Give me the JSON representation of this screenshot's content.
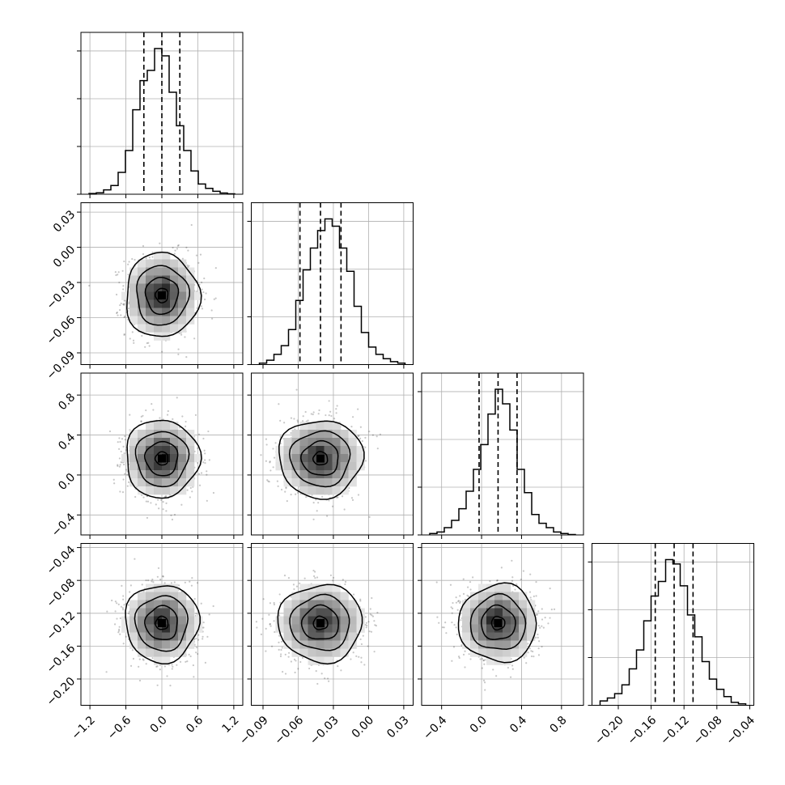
{
  "chart_data": {
    "type": "corner",
    "title": "",
    "grid": true,
    "colors": {
      "line": "#000000",
      "grid": "#b0b0b0",
      "density_dark": "#000000",
      "background": "#ffffff"
    },
    "parameters": [
      {
        "xlim": [
          -1.35,
          1.35
        ],
        "ticks": [
          -1.2,
          -0.6,
          0.0,
          0.6,
          1.2
        ],
        "tick_labels": [
          "−1.2",
          "−0.6",
          "0.0",
          "0.6",
          "1.2"
        ],
        "median": 0.0,
        "sigma": 0.3
      },
      {
        "xlim": [
          -0.1,
          0.038
        ],
        "ticks": [
          -0.09,
          -0.06,
          -0.03,
          0.0,
          0.03
        ],
        "tick_labels": [
          "−0.09",
          "−0.06",
          "−0.03",
          "0.00",
          "0.03"
        ],
        "median": -0.041,
        "sigma": 0.0175
      },
      {
        "xlim": [
          -0.6,
          1.02
        ],
        "ticks": [
          -0.4,
          0.0,
          0.4,
          0.8
        ],
        "tick_labels": [
          "−0.4",
          "0.0",
          "0.4",
          "0.8"
        ],
        "median": 0.165,
        "sigma": 0.19
      },
      {
        "xlim": [
          -0.232,
          -0.035
        ],
        "ticks": [
          -0.2,
          -0.16,
          -0.12,
          -0.08,
          -0.04
        ],
        "tick_labels": [
          "−0.20",
          "−0.16",
          "−0.12",
          "−0.08",
          "−0.04"
        ],
        "median": -0.132,
        "sigma": 0.023
      }
    ],
    "histograms": [
      {
        "counts": [
          0.005,
          0.01,
          0.03,
          0.06,
          0.15,
          0.3,
          0.58,
          0.78,
          0.85,
          1.0,
          0.95,
          0.7,
          0.47,
          0.3,
          0.16,
          0.07,
          0.04,
          0.02,
          0.008,
          0.003
        ]
      },
      {
        "counts": [
          0.01,
          0.03,
          0.07,
          0.13,
          0.24,
          0.44,
          0.65,
          0.8,
          0.92,
          1.0,
          0.95,
          0.8,
          0.64,
          0.4,
          0.22,
          0.12,
          0.07,
          0.04,
          0.02,
          0.01
        ]
      },
      {
        "counts": [
          0.01,
          0.02,
          0.05,
          0.1,
          0.18,
          0.3,
          0.45,
          0.62,
          0.83,
          1.0,
          0.9,
          0.72,
          0.45,
          0.29,
          0.14,
          0.08,
          0.05,
          0.02,
          0.01,
          0.003
        ]
      },
      {
        "counts": [
          0.03,
          0.05,
          0.08,
          0.14,
          0.25,
          0.38,
          0.58,
          0.75,
          0.85,
          1.0,
          0.97,
          0.82,
          0.62,
          0.47,
          0.3,
          0.18,
          0.11,
          0.06,
          0.02,
          0.01
        ]
      }
    ]
  }
}
